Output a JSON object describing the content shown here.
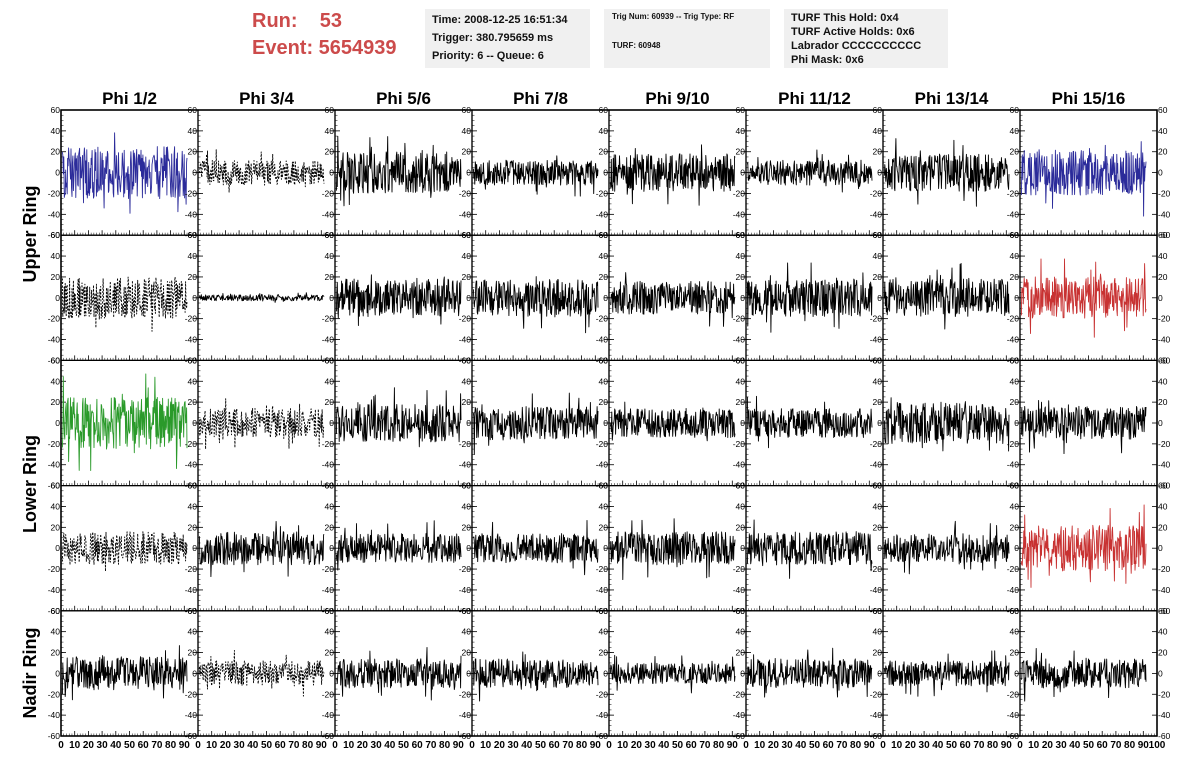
{
  "header": {
    "run_label": "Run:    53",
    "event_label": "Event: 5654939"
  },
  "info_time": {
    "time": "Time: 2008-12-25 16:51:34",
    "trigger": "Trigger: 380.795659 ms",
    "priority": "Priority: 6 -- Queue: 6"
  },
  "info_trig": {
    "trig": "Trig Num: 60939 -- Trig Type: RF",
    "turf": "TURF: 60948"
  },
  "info_turf": {
    "this_hold": "TURF This Hold: 0x4",
    "active_holds": "TURF Active Holds: 0x6",
    "labrador": "Labrador CCCCCCCCCC",
    "phi_mask": "Phi Mask: 0x6"
  },
  "chart_data": {
    "type": "line",
    "columns": [
      "Phi 1/2",
      "Phi 3/4",
      "Phi 5/6",
      "Phi 7/8",
      "Phi 9/10",
      "Phi 11/12",
      "Phi 13/14",
      "Phi 15/16"
    ],
    "rows": [
      "Upper Ring",
      "",
      "Lower Ring",
      "",
      "Nadir Ring"
    ],
    "x_ticks": [
      "0",
      "10",
      "20",
      "30",
      "40",
      "50",
      "60",
      "70",
      "80",
      "90",
      "100"
    ],
    "xlim": [
      0,
      100
    ],
    "y_ticks": [
      "-60",
      "-40",
      "-20",
      "0",
      "20",
      "40",
      "60"
    ],
    "ylim": [
      -60,
      60
    ],
    "grid": false,
    "panel_colors": [
      [
        "#2b2b9a",
        "#000000",
        "#000000",
        "#000000",
        "#000000",
        "#000000",
        "#000000",
        "#2b2b9a"
      ],
      [
        "#000000",
        "#000000",
        "#000000",
        "#000000",
        "#000000",
        "#000000",
        "#000000",
        "#c83232"
      ],
      [
        "#2a9a2a",
        "#000000",
        "#000000",
        "#000000",
        "#000000",
        "#000000",
        "#000000",
        "#000000"
      ],
      [
        "#000000",
        "#000000",
        "#000000",
        "#000000",
        "#000000",
        "#000000",
        "#000000",
        "#c83232"
      ],
      [
        "#000000",
        "#000000",
        "#000000",
        "#000000",
        "#000000",
        "#000000",
        "#000000",
        "#000000"
      ]
    ],
    "panel_dashed": [
      [
        false,
        true,
        false,
        false,
        false,
        false,
        false,
        false
      ],
      [
        true,
        false,
        false,
        false,
        false,
        false,
        false,
        false
      ],
      [
        false,
        true,
        false,
        false,
        false,
        false,
        false,
        false
      ],
      [
        true,
        false,
        false,
        false,
        false,
        false,
        false,
        false
      ],
      [
        false,
        true,
        false,
        false,
        false,
        false,
        false,
        false
      ]
    ],
    "panel_amplitude": [
      [
        25,
        12,
        20,
        12,
        18,
        12,
        18,
        22
      ],
      [
        20,
        3,
        18,
        18,
        16,
        18,
        18,
        20
      ],
      [
        25,
        14,
        18,
        16,
        14,
        14,
        20,
        16
      ],
      [
        16,
        16,
        14,
        14,
        16,
        16,
        14,
        22
      ],
      [
        16,
        12,
        14,
        14,
        10,
        14,
        12,
        14
      ]
    ]
  }
}
